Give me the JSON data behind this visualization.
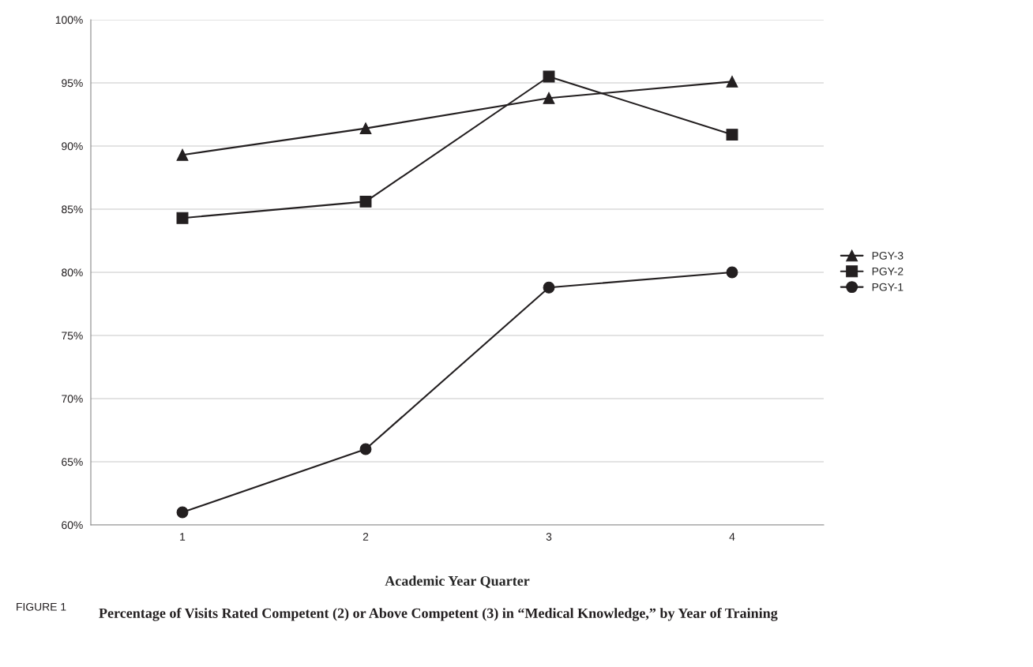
{
  "chart_data": {
    "type": "line",
    "xlabel": "Academic Year Quarter",
    "categories": [
      "1",
      "2",
      "3",
      "4"
    ],
    "series": [
      {
        "name": "PGY-3",
        "color": "#231f20",
        "marker": "triangle",
        "values": [
          89.3,
          91.4,
          93.8,
          95.1
        ]
      },
      {
        "name": "PGY-2",
        "color": "#231f20",
        "marker": "square",
        "values": [
          84.3,
          85.6,
          95.5,
          90.9
        ]
      },
      {
        "name": "PGY-1",
        "color": "#231f20",
        "marker": "circle",
        "values": [
          61.0,
          66.0,
          78.8,
          80.0
        ]
      }
    ],
    "ylim": [
      60,
      100
    ],
    "yticks": [
      {
        "value": 60,
        "label": "60%"
      },
      {
        "value": 65,
        "label": "65%"
      },
      {
        "value": 70,
        "label": "70%"
      },
      {
        "value": 75,
        "label": "75%"
      },
      {
        "value": 80,
        "label": "80%"
      },
      {
        "value": 85,
        "label": "85%"
      },
      {
        "value": 90,
        "label": "90%"
      },
      {
        "value": 95,
        "label": "95%"
      },
      {
        "value": 100,
        "label": "100%"
      }
    ],
    "grid": "y",
    "legend": "right",
    "line_style": "solid",
    "annotations": [
      "FIGURE 1",
      "Percentage of Visits Rated Competent (2) or Above Competent (3) in “Medical Knowledge,” by Year of Training"
    ]
  }
}
